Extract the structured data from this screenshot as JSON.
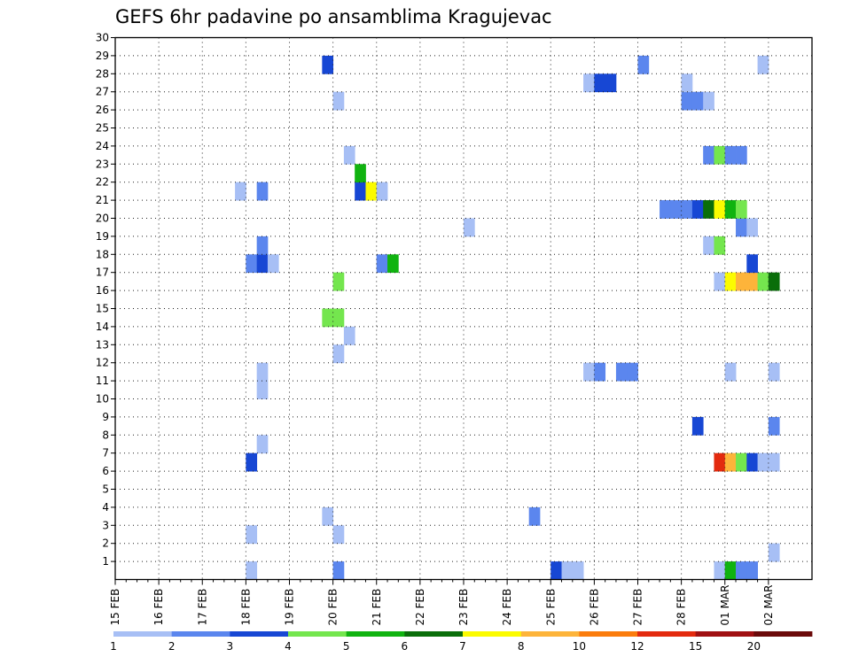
{
  "chart_data": {
    "type": "heatmap",
    "title": "GEFS 6hr padavine po ansamblima Kragujevac",
    "xlabel": "",
    "ylabel": "",
    "x_tick_labels": [
      "15 FEB",
      "16 FEB",
      "17 FEB",
      "18 FEB",
      "19 FEB",
      "20 FEB",
      "21 FEB",
      "22 FEB",
      "23 FEB",
      "24 FEB",
      "25 FEB",
      "26 FEB",
      "27 FEB",
      "28 FEB",
      "01 MAR",
      "02 MAR"
    ],
    "y_tick_labels": [
      "1",
      "2",
      "3",
      "4",
      "5",
      "6",
      "7",
      "8",
      "9",
      "10",
      "11",
      "12",
      "13",
      "14",
      "15",
      "16",
      "17",
      "18",
      "19",
      "20",
      "21",
      "22",
      "23",
      "24",
      "25",
      "26",
      "27",
      "28",
      "29",
      "30"
    ],
    "grid": true,
    "legend_placement": "bottom",
    "legend": {
      "labels": [
        "1",
        "2",
        "3",
        "4",
        "5",
        "6",
        "7",
        "8",
        "10",
        "12",
        "15",
        "20"
      ],
      "colors": [
        "#a7bff5",
        "#5b86ee",
        "#1747d4",
        "#74e64e",
        "#10b310",
        "#0a6e0a",
        "#fbfb00",
        "#fdb43a",
        "#fb7c0c",
        "#e32a0e",
        "#a01012",
        "#6b0a0a"
      ]
    },
    "cells": [
      {
        "day": "18 FEB",
        "h": 0,
        "member": 0,
        "c": 0
      },
      {
        "day": "20 FEB",
        "h": 0,
        "member": 0,
        "c": 1
      },
      {
        "day": "25 FEB",
        "h": 0,
        "member": 0,
        "c": 2
      },
      {
        "day": "25 FEB",
        "h": 6,
        "member": 0,
        "c": 0
      },
      {
        "day": "25 FEB",
        "h": 12,
        "member": 0,
        "c": 0
      },
      {
        "day": "28 FEB",
        "h": 18,
        "member": 0,
        "c": 0
      },
      {
        "day": "01 MAR",
        "h": 0,
        "member": 0,
        "c": 4
      },
      {
        "day": "01 MAR",
        "h": 6,
        "member": 0,
        "c": 1
      },
      {
        "day": "01 MAR",
        "h": 12,
        "member": 0,
        "c": 1
      },
      {
        "day": "02 MAR",
        "h": 0,
        "member": 1,
        "c": 0
      },
      {
        "day": "18 FEB",
        "h": 0,
        "member": 2,
        "c": 0
      },
      {
        "day": "20 FEB",
        "h": 0,
        "member": 2,
        "c": 0
      },
      {
        "day": "19 FEB",
        "h": 18,
        "member": 3,
        "c": 0
      },
      {
        "day": "24 FEB",
        "h": 12,
        "member": 3,
        "c": 1
      },
      {
        "day": "18 FEB",
        "h": 0,
        "member": 6,
        "c": 2
      },
      {
        "day": "28 FEB",
        "h": 18,
        "member": 6,
        "c": 9
      },
      {
        "day": "01 MAR",
        "h": 0,
        "member": 6,
        "c": 7
      },
      {
        "day": "01 MAR",
        "h": 6,
        "member": 6,
        "c": 3
      },
      {
        "day": "01 MAR",
        "h": 12,
        "member": 6,
        "c": 2
      },
      {
        "day": "01 MAR",
        "h": 18,
        "member": 6,
        "c": 0
      },
      {
        "day": "02 MAR",
        "h": 0,
        "member": 6,
        "c": 0
      },
      {
        "day": "18 FEB",
        "h": 6,
        "member": 7,
        "c": 0
      },
      {
        "day": "28 FEB",
        "h": 6,
        "member": 8,
        "c": 2
      },
      {
        "day": "02 MAR",
        "h": 0,
        "member": 8,
        "c": 1
      },
      {
        "day": "18 FEB",
        "h": 6,
        "member": 10,
        "c": 0
      },
      {
        "day": "18 FEB",
        "h": 6,
        "member": 11,
        "c": 0
      },
      {
        "day": "25 FEB",
        "h": 18,
        "member": 11,
        "c": 0
      },
      {
        "day": "26 FEB",
        "h": 0,
        "member": 11,
        "c": 1
      },
      {
        "day": "26 FEB",
        "h": 12,
        "member": 11,
        "c": 1
      },
      {
        "day": "26 FEB",
        "h": 18,
        "member": 11,
        "c": 1
      },
      {
        "day": "01 MAR",
        "h": 0,
        "member": 11,
        "c": 0
      },
      {
        "day": "02 MAR",
        "h": 0,
        "member": 11,
        "c": 0
      },
      {
        "day": "20 FEB",
        "h": 0,
        "member": 12,
        "c": 0
      },
      {
        "day": "20 FEB",
        "h": 6,
        "member": 13,
        "c": 0
      },
      {
        "day": "19 FEB",
        "h": 18,
        "member": 14,
        "c": 3
      },
      {
        "day": "20 FEB",
        "h": 0,
        "member": 14,
        "c": 3
      },
      {
        "day": "20 FEB",
        "h": 0,
        "member": 16,
        "c": 3
      },
      {
        "day": "28 FEB",
        "h": 18,
        "member": 16,
        "c": 0
      },
      {
        "day": "01 MAR",
        "h": 0,
        "member": 16,
        "c": 6
      },
      {
        "day": "01 MAR",
        "h": 6,
        "member": 16,
        "c": 7
      },
      {
        "day": "01 MAR",
        "h": 12,
        "member": 16,
        "c": 7
      },
      {
        "day": "01 MAR",
        "h": 18,
        "member": 16,
        "c": 3
      },
      {
        "day": "02 MAR",
        "h": 0,
        "member": 16,
        "c": 5
      },
      {
        "day": "18 FEB",
        "h": 0,
        "member": 17,
        "c": 1
      },
      {
        "day": "18 FEB",
        "h": 6,
        "member": 17,
        "c": 2
      },
      {
        "day": "18 FEB",
        "h": 12,
        "member": 17,
        "c": 0
      },
      {
        "day": "21 FEB",
        "h": 0,
        "member": 17,
        "c": 1
      },
      {
        "day": "21 FEB",
        "h": 6,
        "member": 17,
        "c": 4
      },
      {
        "day": "01 MAR",
        "h": 12,
        "member": 17,
        "c": 2
      },
      {
        "day": "18 FEB",
        "h": 6,
        "member": 18,
        "c": 1
      },
      {
        "day": "28 FEB",
        "h": 12,
        "member": 18,
        "c": 0
      },
      {
        "day": "28 FEB",
        "h": 18,
        "member": 18,
        "c": 3
      },
      {
        "day": "23 FEB",
        "h": 0,
        "member": 19,
        "c": 0
      },
      {
        "day": "01 MAR",
        "h": 6,
        "member": 19,
        "c": 1
      },
      {
        "day": "01 MAR",
        "h": 12,
        "member": 19,
        "c": 0
      },
      {
        "day": "27 FEB",
        "h": 12,
        "member": 20,
        "c": 1
      },
      {
        "day": "27 FEB",
        "h": 18,
        "member": 20,
        "c": 1
      },
      {
        "day": "28 FEB",
        "h": 0,
        "member": 20,
        "c": 1
      },
      {
        "day": "28 FEB",
        "h": 6,
        "member": 20,
        "c": 2
      },
      {
        "day": "28 FEB",
        "h": 12,
        "member": 20,
        "c": 5
      },
      {
        "day": "28 FEB",
        "h": 18,
        "member": 20,
        "c": 6
      },
      {
        "day": "01 MAR",
        "h": 0,
        "member": 20,
        "c": 4
      },
      {
        "day": "01 MAR",
        "h": 6,
        "member": 20,
        "c": 3
      },
      {
        "day": "17 FEB",
        "h": 18,
        "member": 21,
        "c": 0
      },
      {
        "day": "18 FEB",
        "h": 6,
        "member": 21,
        "c": 1
      },
      {
        "day": "20 FEB",
        "h": 12,
        "member": 21,
        "c": 2
      },
      {
        "day": "20 FEB",
        "h": 18,
        "member": 21,
        "c": 6
      },
      {
        "day": "21 FEB",
        "h": 0,
        "member": 21,
        "c": 0
      },
      {
        "day": "20 FEB",
        "h": 12,
        "member": 22,
        "c": 4
      },
      {
        "day": "20 FEB",
        "h": 6,
        "member": 23,
        "c": 0
      },
      {
        "day": "28 FEB",
        "h": 12,
        "member": 23,
        "c": 1
      },
      {
        "day": "28 FEB",
        "h": 18,
        "member": 23,
        "c": 3
      },
      {
        "day": "01 MAR",
        "h": 0,
        "member": 23,
        "c": 1
      },
      {
        "day": "01 MAR",
        "h": 6,
        "member": 23,
        "c": 1
      },
      {
        "day": "20 FEB",
        "h": 0,
        "member": 26,
        "c": 0
      },
      {
        "day": "28 FEB",
        "h": 0,
        "member": 26,
        "c": 1
      },
      {
        "day": "28 FEB",
        "h": 6,
        "member": 26,
        "c": 1
      },
      {
        "day": "28 FEB",
        "h": 12,
        "member": 26,
        "c": 0
      },
      {
        "day": "25 FEB",
        "h": 18,
        "member": 27,
        "c": 0
      },
      {
        "day": "26 FEB",
        "h": 0,
        "member": 27,
        "c": 2
      },
      {
        "day": "26 FEB",
        "h": 6,
        "member": 27,
        "c": 2
      },
      {
        "day": "28 FEB",
        "h": 0,
        "member": 27,
        "c": 0
      },
      {
        "day": "19 FEB",
        "h": 18,
        "member": 28,
        "c": 2
      },
      {
        "day": "27 FEB",
        "h": 0,
        "member": 28,
        "c": 1
      },
      {
        "day": "01 MAR",
        "h": 18,
        "member": 28,
        "c": 0
      }
    ]
  }
}
